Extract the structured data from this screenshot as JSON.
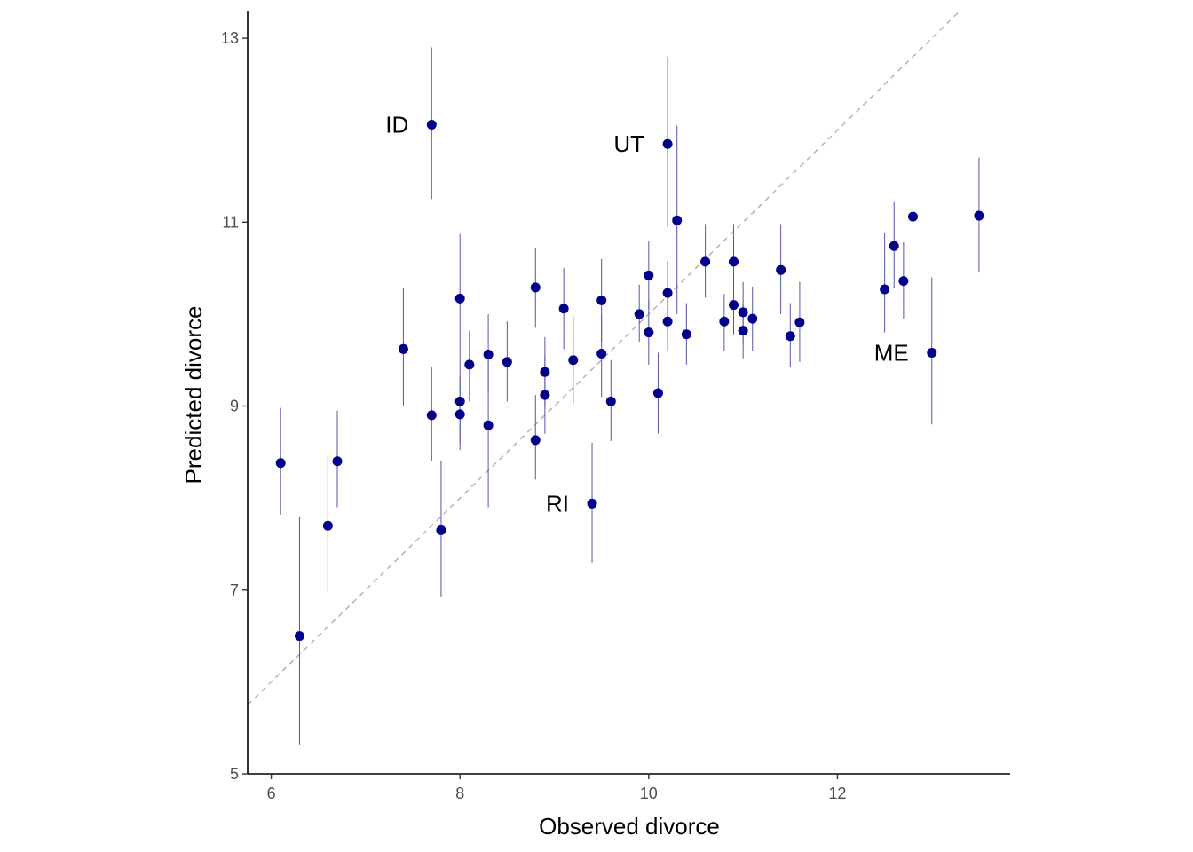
{
  "chart_data": {
    "type": "scatter",
    "title": "",
    "xlabel": "Observed divorce",
    "ylabel": "Predicted divorce",
    "xlim": [
      5.75,
      13.83
    ],
    "ylim": [
      5.0,
      13.3
    ],
    "x_ticks": [
      6,
      8,
      10,
      12
    ],
    "x_tick_labels": [
      "6",
      "8",
      "10",
      "12"
    ],
    "y_ticks": [
      5,
      7,
      9,
      11,
      13
    ],
    "y_tick_labels": [
      "5",
      "7",
      "9",
      "11",
      "13"
    ],
    "grid": false,
    "reference_line": {
      "style": "dashed",
      "slope": 1,
      "intercept": 0,
      "color": "#b3b3b3"
    },
    "point_color": "#00008b",
    "interval_color": "#5555aa",
    "points": [
      {
        "x": 7.7,
        "y": 12.06,
        "lo": 11.25,
        "hi": 12.9
      },
      {
        "x": 10.2,
        "y": 11.85,
        "lo": 10.95,
        "hi": 12.8
      },
      {
        "x": 10.3,
        "y": 11.02,
        "lo": 10.0,
        "hi": 12.05
      },
      {
        "x": 6.1,
        "y": 8.38,
        "lo": 7.82,
        "hi": 8.98
      },
      {
        "x": 6.3,
        "y": 6.5,
        "lo": 5.32,
        "hi": 7.8
      },
      {
        "x": 6.6,
        "y": 7.7,
        "lo": 6.98,
        "hi": 8.45
      },
      {
        "x": 6.7,
        "y": 8.4,
        "lo": 7.9,
        "hi": 8.95
      },
      {
        "x": 7.4,
        "y": 9.62,
        "lo": 9.0,
        "hi": 10.28
      },
      {
        "x": 7.7,
        "y": 8.9,
        "lo": 8.4,
        "hi": 9.42
      },
      {
        "x": 7.8,
        "y": 7.65,
        "lo": 6.92,
        "hi": 8.4
      },
      {
        "x": 8.0,
        "y": 10.17,
        "lo": 9.5,
        "hi": 10.87
      },
      {
        "x": 8.0,
        "y": 9.05,
        "lo": 8.6,
        "hi": 9.5
      },
      {
        "x": 8.0,
        "y": 8.91,
        "lo": 8.52,
        "hi": 9.32
      },
      {
        "x": 8.1,
        "y": 9.45,
        "lo": 9.05,
        "hi": 9.82
      },
      {
        "x": 8.3,
        "y": 9.56,
        "lo": 9.15,
        "hi": 10.0
      },
      {
        "x": 8.3,
        "y": 8.79,
        "lo": 7.9,
        "hi": 9.62
      },
      {
        "x": 8.5,
        "y": 9.48,
        "lo": 9.05,
        "hi": 9.92
      },
      {
        "x": 8.8,
        "y": 10.29,
        "lo": 9.85,
        "hi": 10.72
      },
      {
        "x": 8.8,
        "y": 8.63,
        "lo": 8.2,
        "hi": 9.12
      },
      {
        "x": 8.9,
        "y": 9.37,
        "lo": 8.98,
        "hi": 9.75
      },
      {
        "x": 8.9,
        "y": 9.12,
        "lo": 8.7,
        "hi": 9.55
      },
      {
        "x": 9.1,
        "y": 10.06,
        "lo": 9.62,
        "hi": 10.5
      },
      {
        "x": 9.2,
        "y": 9.5,
        "lo": 9.02,
        "hi": 9.98
      },
      {
        "x": 9.4,
        "y": 7.94,
        "lo": 7.3,
        "hi": 8.6
      },
      {
        "x": 9.5,
        "y": 10.15,
        "lo": 9.7,
        "hi": 10.6
      },
      {
        "x": 9.5,
        "y": 9.57,
        "lo": 9.1,
        "hi": 10.0
      },
      {
        "x": 9.6,
        "y": 9.05,
        "lo": 8.62,
        "hi": 9.5
      },
      {
        "x": 9.9,
        "y": 10.0,
        "lo": 9.7,
        "hi": 10.32
      },
      {
        "x": 10.0,
        "y": 10.42,
        "lo": 10.05,
        "hi": 10.8
      },
      {
        "x": 10.0,
        "y": 9.8,
        "lo": 9.45,
        "hi": 10.15
      },
      {
        "x": 10.1,
        "y": 9.14,
        "lo": 8.7,
        "hi": 9.58
      },
      {
        "x": 10.2,
        "y": 10.23,
        "lo": 9.88,
        "hi": 10.58
      },
      {
        "x": 10.2,
        "y": 9.92,
        "lo": 9.6,
        "hi": 10.25
      },
      {
        "x": 10.4,
        "y": 9.78,
        "lo": 9.45,
        "hi": 10.12
      },
      {
        "x": 10.6,
        "y": 10.57,
        "lo": 10.18,
        "hi": 10.98
      },
      {
        "x": 10.8,
        "y": 9.92,
        "lo": 9.6,
        "hi": 10.22
      },
      {
        "x": 10.9,
        "y": 10.57,
        "lo": 10.18,
        "hi": 10.98
      },
      {
        "x": 10.9,
        "y": 10.1,
        "lo": 9.78,
        "hi": 10.42
      },
      {
        "x": 11.0,
        "y": 10.02,
        "lo": 9.68,
        "hi": 10.35
      },
      {
        "x": 11.0,
        "y": 9.82,
        "lo": 9.52,
        "hi": 10.12
      },
      {
        "x": 11.1,
        "y": 9.95,
        "lo": 9.6,
        "hi": 10.3
      },
      {
        "x": 11.4,
        "y": 10.48,
        "lo": 10.0,
        "hi": 10.98
      },
      {
        "x": 11.5,
        "y": 9.76,
        "lo": 9.42,
        "hi": 10.12
      },
      {
        "x": 11.6,
        "y": 9.91,
        "lo": 9.48,
        "hi": 10.35
      },
      {
        "x": 12.5,
        "y": 10.27,
        "lo": 9.8,
        "hi": 10.88
      },
      {
        "x": 12.6,
        "y": 10.74,
        "lo": 10.28,
        "hi": 11.22
      },
      {
        "x": 12.7,
        "y": 10.36,
        "lo": 9.95,
        "hi": 10.78
      },
      {
        "x": 12.8,
        "y": 11.06,
        "lo": 10.52,
        "hi": 11.6
      },
      {
        "x": 13.0,
        "y": 9.58,
        "lo": 8.8,
        "hi": 10.4
      },
      {
        "x": 13.5,
        "y": 11.07,
        "lo": 10.45,
        "hi": 11.7
      }
    ],
    "annotations": [
      {
        "text": "ID",
        "x": 7.7,
        "y": 12.06
      },
      {
        "text": "UT",
        "x": 10.2,
        "y": 11.85
      },
      {
        "text": "RI",
        "x": 9.4,
        "y": 7.94
      },
      {
        "text": "ME",
        "x": 13.0,
        "y": 9.58
      }
    ]
  }
}
